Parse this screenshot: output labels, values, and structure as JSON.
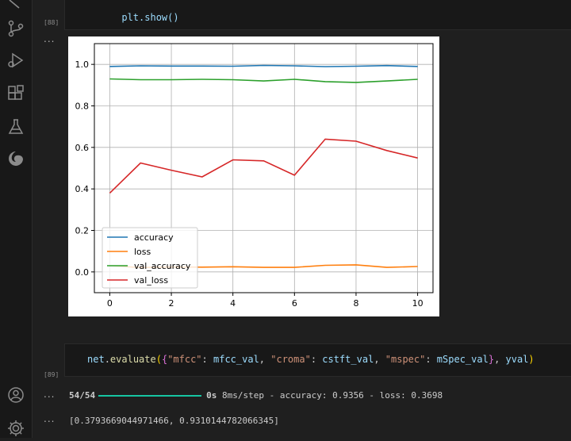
{
  "cells": [
    {
      "exec_count": "[88]",
      "code": "plt.show()",
      "output_dots": "..."
    },
    {
      "exec_count": "[89]",
      "code_parts": {
        "p1": "net",
        "p2": ".",
        "p3": "evaluate",
        "p4": "(",
        "p5": "{",
        "p6": "\"mfcc\"",
        "p7": ": ",
        "p8": "mfcc_val",
        "p9": ", ",
        "p10": "\"croma\"",
        "p11": ": ",
        "p12": "cstft_val",
        "p13": ", ",
        "p14": "\"mspec\"",
        "p15": ": ",
        "p16": "mSpec_val",
        "p17": "}",
        "p18": ", ",
        "p19": "yval",
        "p20": ")"
      },
      "output_dots": "...",
      "progress": {
        "steps": "54/54",
        "fraction": 1.0,
        "time": "0s",
        "rest": "8ms/step - accuracy: 0.9356 - loss: 0.3698"
      },
      "result_dots": "...",
      "result": "[0.3793669044971466, 0.9310144782066345]"
    }
  ],
  "icons": [
    "files-icon",
    "source-control-icon",
    "run-debug-icon",
    "extensions-icon",
    "testing-icon",
    "edge-icon",
    "account-icon",
    "settings-gear-icon"
  ],
  "chart_data": {
    "type": "line",
    "x": [
      0,
      1,
      2,
      3,
      4,
      5,
      6,
      7,
      8,
      9,
      10
    ],
    "xticks": [
      0,
      2,
      4,
      6,
      8,
      10
    ],
    "yticks": [
      0.0,
      0.2,
      0.4,
      0.6,
      0.8,
      1.0
    ],
    "xlim": [
      -0.5,
      10.5
    ],
    "ylim": [
      -0.1,
      1.1
    ],
    "grid": true,
    "legend_position": "lower-left",
    "series": [
      {
        "name": "accuracy",
        "color": "#1f77b4",
        "values": [
          0.99,
          0.993,
          0.992,
          0.992,
          0.991,
          0.995,
          0.993,
          0.989,
          0.991,
          0.994,
          0.99
        ]
      },
      {
        "name": "loss",
        "color": "#ff7f0e",
        "values": [
          0.03,
          0.021,
          0.024,
          0.023,
          0.025,
          0.022,
          0.022,
          0.032,
          0.034,
          0.022,
          0.026
        ]
      },
      {
        "name": "val_accuracy",
        "color": "#2ca02c",
        "values": [
          0.93,
          0.926,
          0.926,
          0.928,
          0.926,
          0.92,
          0.928,
          0.917,
          0.913,
          0.92,
          0.928
        ]
      },
      {
        "name": "val_loss",
        "color": "#d62728",
        "values": [
          0.38,
          0.525,
          0.49,
          0.458,
          0.54,
          0.535,
          0.466,
          0.64,
          0.63,
          0.585,
          0.549
        ]
      }
    ]
  }
}
